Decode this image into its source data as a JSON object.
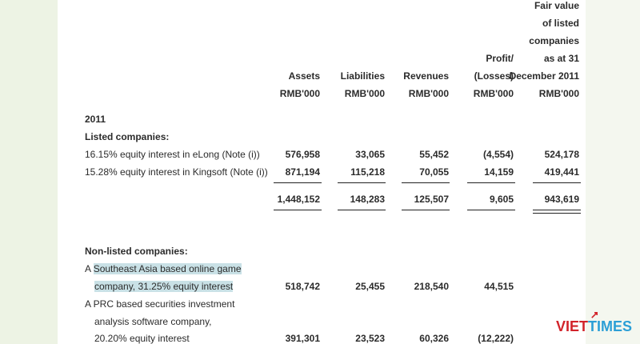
{
  "header": {
    "assets": [
      "Assets",
      "RMB'000"
    ],
    "liabilities": [
      "Liabilities",
      "RMB'000"
    ],
    "revenues": [
      "Revenues",
      "RMB'000"
    ],
    "profit": [
      "Profit/",
      "(Losses)",
      "RMB'000"
    ],
    "fairvalue": [
      "Fair value",
      "of listed",
      "companies",
      "as at 31",
      "December 2011",
      "RMB'000"
    ]
  },
  "year": "2011",
  "listed_heading": "Listed companies:",
  "listed_rows": [
    {
      "label": "16.15% equity interest in eLong (Note (i))",
      "assets": "576,958",
      "liabilities": "33,065",
      "revenues": "55,452",
      "profit": "(4,554)",
      "fair": "524,178"
    },
    {
      "label": "15.28% equity interest in Kingsoft (Note (i))",
      "assets": "871,194",
      "liabilities": "115,218",
      "revenues": "70,055",
      "profit": "14,159",
      "fair": "419,441"
    }
  ],
  "listed_total": {
    "assets": "1,448,152",
    "liabilities": "148,283",
    "revenues": "125,507",
    "profit": "9,605",
    "fair": "943,619"
  },
  "nonlisted_heading": "Non-listed companies:",
  "nonlisted": [
    {
      "prefix": "A ",
      "highlight1": "Southeast Asia based online game",
      "highlight2": "company, 31.25% equity interest",
      "assets": "518,742",
      "liabilities": "25,455",
      "revenues": "218,540",
      "profit": "44,515"
    },
    {
      "line1": "A PRC based securities investment",
      "line2": "analysis software company,",
      "line3": "20.20% equity interest",
      "assets": "391,301",
      "liabilities": "23,523",
      "revenues": "60,326",
      "profit": "(12,222)"
    }
  ],
  "watermark": "VIETTIMES"
}
